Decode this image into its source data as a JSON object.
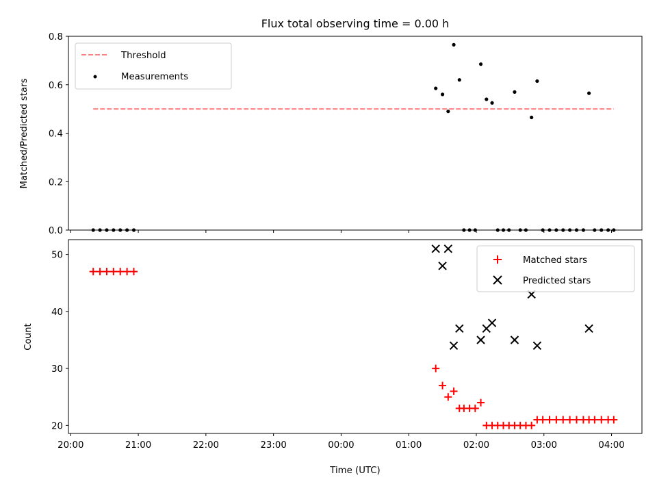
{
  "figure_title": "Flux total observing time = 0.00 h",
  "chart_data": [
    {
      "type": "scatter",
      "ylabel": "Matched/Predicted stars",
      "xlabel": "",
      "ylim": [
        0,
        0.8
      ],
      "yticks": [
        0.0,
        0.2,
        0.4,
        0.6,
        0.8
      ],
      "ytick_labels": [
        "0.0",
        "0.2",
        "0.4",
        "0.6",
        "0.8"
      ],
      "legend_position": "top-left",
      "threshold": {
        "name": "Threshold",
        "y": 0.5,
        "x_start": "20:20",
        "x_end": "04:02",
        "color": "#ff7f7f",
        "style": "dashed"
      },
      "series": [
        {
          "name": "Measurements",
          "color": "#000000",
          "marker": "dot",
          "points": [
            [
              "20:20",
              0
            ],
            [
              "20:26",
              0
            ],
            [
              "20:32",
              0
            ],
            [
              "20:38",
              0
            ],
            [
              "20:44",
              0
            ],
            [
              "20:50",
              0
            ],
            [
              "20:56",
              0
            ],
            [
              "01:24",
              0.585
            ],
            [
              "01:30",
              0.56
            ],
            [
              "01:35",
              0.49
            ],
            [
              "01:40",
              0.765
            ],
            [
              "01:45",
              0.62
            ],
            [
              "01:49",
              0
            ],
            [
              "01:54",
              0
            ],
            [
              "01:59",
              0
            ],
            [
              "02:04",
              0.685
            ],
            [
              "02:09",
              0.54
            ],
            [
              "02:14",
              0.525
            ],
            [
              "02:19",
              0
            ],
            [
              "02:24",
              0
            ],
            [
              "02:29",
              0
            ],
            [
              "02:34",
              0.57
            ],
            [
              "02:39",
              0
            ],
            [
              "02:44",
              0
            ],
            [
              "02:49",
              0.465
            ],
            [
              "02:54",
              0.615
            ],
            [
              "02:59",
              0
            ],
            [
              "03:05",
              0
            ],
            [
              "03:11",
              0
            ],
            [
              "03:17",
              0
            ],
            [
              "03:23",
              0
            ],
            [
              "03:29",
              0
            ],
            [
              "03:35",
              0
            ],
            [
              "03:40",
              0.565
            ],
            [
              "03:45",
              0
            ],
            [
              "03:51",
              0
            ],
            [
              "03:57",
              0
            ],
            [
              "04:02",
              0
            ]
          ]
        }
      ]
    },
    {
      "type": "scatter",
      "ylabel": "Count",
      "xlabel": "Time (UTC)",
      "ylim": [
        18.6,
        52.6
      ],
      "yticks": [
        20,
        30,
        40,
        50
      ],
      "ytick_labels": [
        "20",
        "30",
        "40",
        "50"
      ],
      "xlim": [
        "19:58",
        "04:27"
      ],
      "xticks": [
        "20:00",
        "21:00",
        "22:00",
        "23:00",
        "00:00",
        "01:00",
        "02:00",
        "03:00",
        "04:00"
      ],
      "xtick_labels": [
        "20:00",
        "21:00",
        "22:00",
        "23:00",
        "00:00",
        "01:00",
        "02:00",
        "03:00",
        "04:00"
      ],
      "legend_position": "top-right",
      "series": [
        {
          "name": "Matched stars",
          "color": "#ff0000",
          "marker": "plus",
          "points": [
            [
              "20:20",
              47
            ],
            [
              "20:26",
              47
            ],
            [
              "20:32",
              47
            ],
            [
              "20:38",
              47
            ],
            [
              "20:44",
              47
            ],
            [
              "20:50",
              47
            ],
            [
              "20:56",
              47
            ],
            [
              "01:24",
              30
            ],
            [
              "01:30",
              27
            ],
            [
              "01:35",
              25
            ],
            [
              "01:40",
              26
            ],
            [
              "01:45",
              23
            ],
            [
              "01:49",
              23
            ],
            [
              "01:54",
              23
            ],
            [
              "01:59",
              23
            ],
            [
              "02:04",
              24
            ],
            [
              "02:09",
              20
            ],
            [
              "02:14",
              20
            ],
            [
              "02:19",
              20
            ],
            [
              "02:24",
              20
            ],
            [
              "02:29",
              20
            ],
            [
              "02:34",
              20
            ],
            [
              "02:39",
              20
            ],
            [
              "02:44",
              20
            ],
            [
              "02:49",
              20
            ],
            [
              "02:54",
              21
            ],
            [
              "02:59",
              21
            ],
            [
              "03:05",
              21
            ],
            [
              "03:11",
              21
            ],
            [
              "03:17",
              21
            ],
            [
              "03:23",
              21
            ],
            [
              "03:29",
              21
            ],
            [
              "03:35",
              21
            ],
            [
              "03:40",
              21
            ],
            [
              "03:45",
              21
            ],
            [
              "03:51",
              21
            ],
            [
              "03:57",
              21
            ],
            [
              "04:02",
              21
            ]
          ]
        },
        {
          "name": "Predicted stars",
          "color": "#000000",
          "marker": "x",
          "points": [
            [
              "01:24",
              51
            ],
            [
              "01:30",
              48
            ],
            [
              "01:35",
              51
            ],
            [
              "01:40",
              34
            ],
            [
              "01:45",
              37
            ],
            [
              "02:04",
              35
            ],
            [
              "02:09",
              37
            ],
            [
              "02:14",
              38
            ],
            [
              "02:34",
              35
            ],
            [
              "02:49",
              43
            ],
            [
              "02:54",
              34
            ],
            [
              "03:40",
              37
            ]
          ]
        }
      ]
    }
  ]
}
